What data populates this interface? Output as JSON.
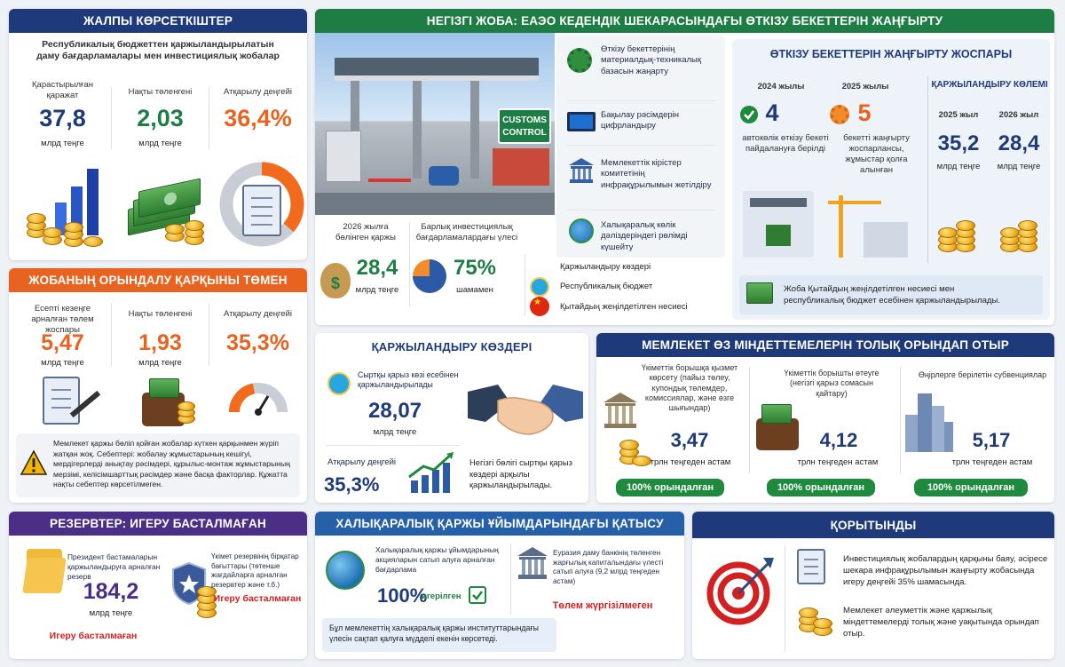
{
  "general": {
    "title": "ЖАЛПЫ КӨРСЕТКІШТЕР",
    "subtitle": "Республикалық бюджеттен қаржыландырылатын даму бағдарламалары мен инвестициялық жобалар",
    "c1": {
      "label": "Қарастырылған қаражат",
      "value": "37,8",
      "unit": "млрд теңге"
    },
    "c2": {
      "label": "Нақты төленгені",
      "value": "2,03",
      "unit": "млрд теңге"
    },
    "c3": {
      "label": "Атқарылу деңгейі",
      "value": "36,4%"
    },
    "progress": 0.364
  },
  "slow": {
    "title": "ЖОБАНЫҢ ОРЫНДАЛУ ҚАРҚЫНЫ ТӨМЕН",
    "c1": {
      "label": "Есепті кезеңге арналған төлем жоспары",
      "value": "5,47",
      "unit": "млрд теңге"
    },
    "c2": {
      "label": "Нақты төленгені",
      "value": "1,93",
      "unit": "млрд теңге"
    },
    "c3": {
      "label": "Атқарылу деңгейі",
      "value": "35,3%"
    },
    "note": "Мемлекет қаржы бөліп қойған жобалар күткен қарқынмен жүріп жатқан жоқ. Себептері: жобалау жұмыстарының кешігуі, мердігерлерді анықтау рәсімдері, құрылыс-монтаж жұмыстарының мерзімі, келісімшарттық рәсімдер және басқа факторлар. Құжатта нақты себептер көрсетілмеген."
  },
  "reserves": {
    "title": "РЕЗЕРВТЕР: ИГЕРУ БАСТАЛМАҒАН",
    "left_label": "Президент бастамаларын қаржыландыруға арналған резерв",
    "value": "184,2",
    "unit": "млрд теңге",
    "left_status": "Игеру басталмаған",
    "right_label": "Үкімет резервінің бірқатар бағыттары (төтенше жағдайларға арналған резервтер және т.б.)",
    "right_status": "Игеру басталмаған"
  },
  "project": {
    "title": "НЕГІЗГІ ЖОБА: ЕАЭО КЕДЕНДІК ШЕКАРАСЫНДАҒЫ ӨТКІЗУ БЕКЕТТЕРІН ЖАҢҒЫРТУ",
    "sign": "CUSTOMS CONTROL",
    "features": [
      "Өткізу бекеттерінің материалдық-техникалық базасын жаңарту",
      "Бақылау рәсімдерін цифрландыру",
      "Мемлекеттік кірістер комитетінің инфрақұрылымын жетілдіру",
      "Халықаралық көлік дәліздеріндегі рөлімді күшейту"
    ],
    "alloc_label": "2026 жылға бөлінген қаржы",
    "alloc_value": "28,4",
    "alloc_unit": "млрд теңге",
    "share_label": "Барлық инвестициялық бағдарламалардағы үлесі",
    "share_value": "75%",
    "share_unit": "шамамен",
    "share_fraction": 0.75,
    "sources_title": "Қаржыландыру көздері",
    "source1": "Республикалық бюджет",
    "source2": "Қытайдың жеңілдетілген несиесі",
    "plan_title": "ӨТКІЗУ БЕКЕТТЕРІН ЖАҢҒЫРТУ ЖОСПАРЫ",
    "y2024": "2024 жылы",
    "n2024": "4",
    "d2024": "автокөлік өткізу бекеті пайдалануға берілді",
    "y2025": "2025 жылы",
    "n2025": "5",
    "d2025": "бекетті жаңғырту жоспарлансы, жұмыстар қолға алынған",
    "fund_title": "ҚАРЖЫЛАНДЫРУ КӨЛЕМІ",
    "f1_year": "2025 жыл",
    "f1_value": "35,2",
    "f1_unit": "млрд теңге",
    "f2_year": "2026 жыл",
    "f2_value": "28,4",
    "f2_unit": "млрд теңге",
    "plan_note": "Жоба Қытайдың жеңілдетілген несиесі мен республикалық бюджет есебінен қаржыландырылады."
  },
  "funding": {
    "title": "ҚАРЖЫЛАНДЫРУ КӨЗДЕРІ",
    "ext_label": "Сыртқы қарыз көзі есебінен қаржыландырылады",
    "ext_value": "28,07",
    "ext_unit": "млрд теңге",
    "exec_label": "Атқарылу деңгейі",
    "exec_value": "35,3%",
    "note": "Негізгі бөлігі сыртқы қарыз көздері арқылы қаржыландырылады."
  },
  "obligations": {
    "title": "МЕМЛЕКЕТ ӨЗ МІНДЕТТЕМЕЛЕРІН ТОЛЫҚ ОРЫНДАП ОТЫР",
    "c1": {
      "label": "Үкіметтік борышқа қызмет көрсету (пайыз төлеу, купондық төлемдер, комиссиялар, және өзге шығындар)",
      "value": "3,47",
      "unit": "трлн теңгеден астам",
      "status": "100% орындалған"
    },
    "c2": {
      "label": "Үкіметтік борышты өтеуге (негізгі қарыз сомасын қайтару)",
      "value": "4,12",
      "unit": "трлн теңгеден астам",
      "status": "100% орындалған"
    },
    "c3": {
      "label": "Өңірлерге берілетін субвенциялар",
      "value": "5,17",
      "unit": "трлн теңгеден астам",
      "status": "100% орындалған"
    }
  },
  "intl": {
    "title": "ХАЛЫҚАРАЛЫҚ ҚАРЖЫ ҰЙЫМДАРЫНДАҒЫ ҚАТЫСУ",
    "left_label": "Халықаралық қаржы ұйымдарының акцияларын сатып алуға арналған бағдарлама",
    "left_value": "100%",
    "left_status": "игерілген",
    "right_label": "Еуразия даму банкінің төленген жарғылық капиталындағы үлесті сатып алуға (9,2 млрд теңгеден астам)",
    "right_status": "Төлем жүргізілмеген",
    "note": "Бұл мемлекеттің халықаралық қаржы институттарындағы үлесін сақтап қалуға мүдделі екенін көрсетеді."
  },
  "conclusion": {
    "title": "ҚОРЫТЫНДЫ",
    "p1": "Инвестициялық жобалардың қарқыны баяу, әсіресе шекара инфрақұрылымын жаңғырту жобасында игеру деңгейі 35% шамасында.",
    "p2": "Мемлекет әлеуметтік және қаржылық міндеттемелерді толық және уақытында орындап отыр."
  }
}
